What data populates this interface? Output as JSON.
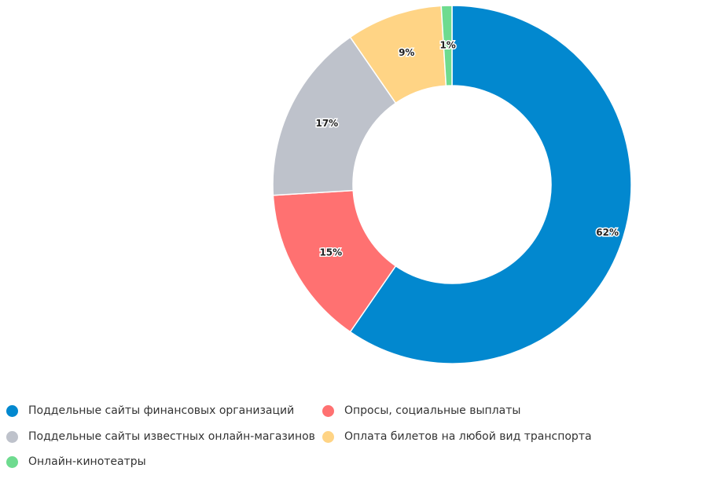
{
  "chart_data": {
    "type": "pie",
    "variant": "donut",
    "title": "",
    "legend_position": "bottom-left",
    "slices": [
      {
        "name": "Поддельные сайты финансовых организаций",
        "value": 62,
        "label": "62%",
        "color": "#0288CF"
      },
      {
        "name": "Опросы, социальные выплаты",
        "value": 15,
        "label": "15%",
        "color": "#FF7171"
      },
      {
        "name": "Поддельные сайты известных онлайн-магазинов",
        "value": 17,
        "label": "17%",
        "color": "#BEC2CB"
      },
      {
        "name": "Оплата билетов на любой вид транспорта",
        "value": 9,
        "label": "9%",
        "color": "#FFD485"
      },
      {
        "name": "Онлайн-кинотеатры",
        "value": 1,
        "label": "1%",
        "color": "#6EDB8F"
      }
    ]
  }
}
